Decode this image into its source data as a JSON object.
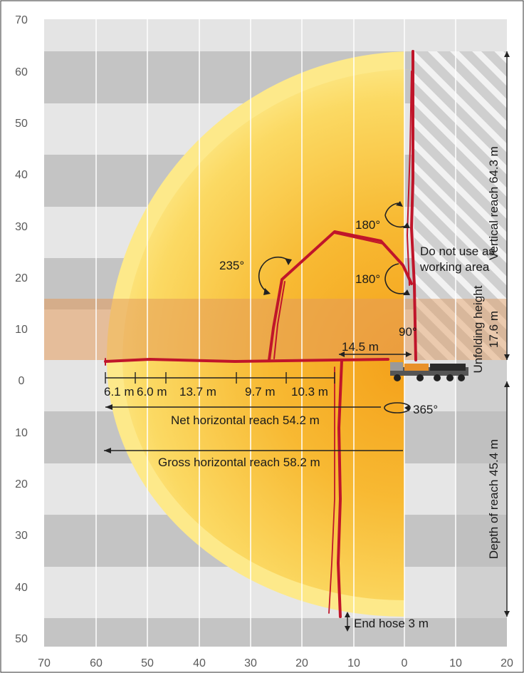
{
  "diagram": {
    "y_ticks_above": [
      "70",
      "60",
      "50",
      "40",
      "30",
      "20",
      "10",
      "0"
    ],
    "y_ticks_below": [
      "10",
      "20",
      "30",
      "40",
      "50"
    ],
    "x_ticks": [
      "70",
      "60",
      "50",
      "40",
      "30",
      "20",
      "10",
      "0",
      "10",
      "20"
    ],
    "angles": {
      "a235": "235°",
      "a180_upper": "180°",
      "a180_lower": "180°",
      "a90": "90°",
      "a365": "365°"
    },
    "labels": {
      "do_not_use_line1": "Do not use as",
      "do_not_use_line2": "working area",
      "reach_14_5": "14.5 m",
      "net_horizontal": "Net horizontal reach 54.2 m",
      "gross_horizontal": "Gross horizontal reach 58.2 m",
      "end_hose": "End hose 3 m",
      "vertical_reach": "Vertical reach 64.3 m",
      "unfolding_line1": "Unfolding height",
      "unfolding_line2": "17.6 m",
      "depth_of_reach": "Depth of reach 45.4 m"
    },
    "segments": [
      "6.1 m",
      "6.0 m",
      "13.7 m",
      "9.7 m",
      "10.3 m"
    ],
    "colors": {
      "boom": "#c0152a",
      "reach_light": "#fde98a",
      "reach_core": "#f3a81c",
      "unfold_band": "#e6a56b",
      "grid_dark": "#c2c2c2",
      "grid_light": "#e6e6e6"
    }
  }
}
